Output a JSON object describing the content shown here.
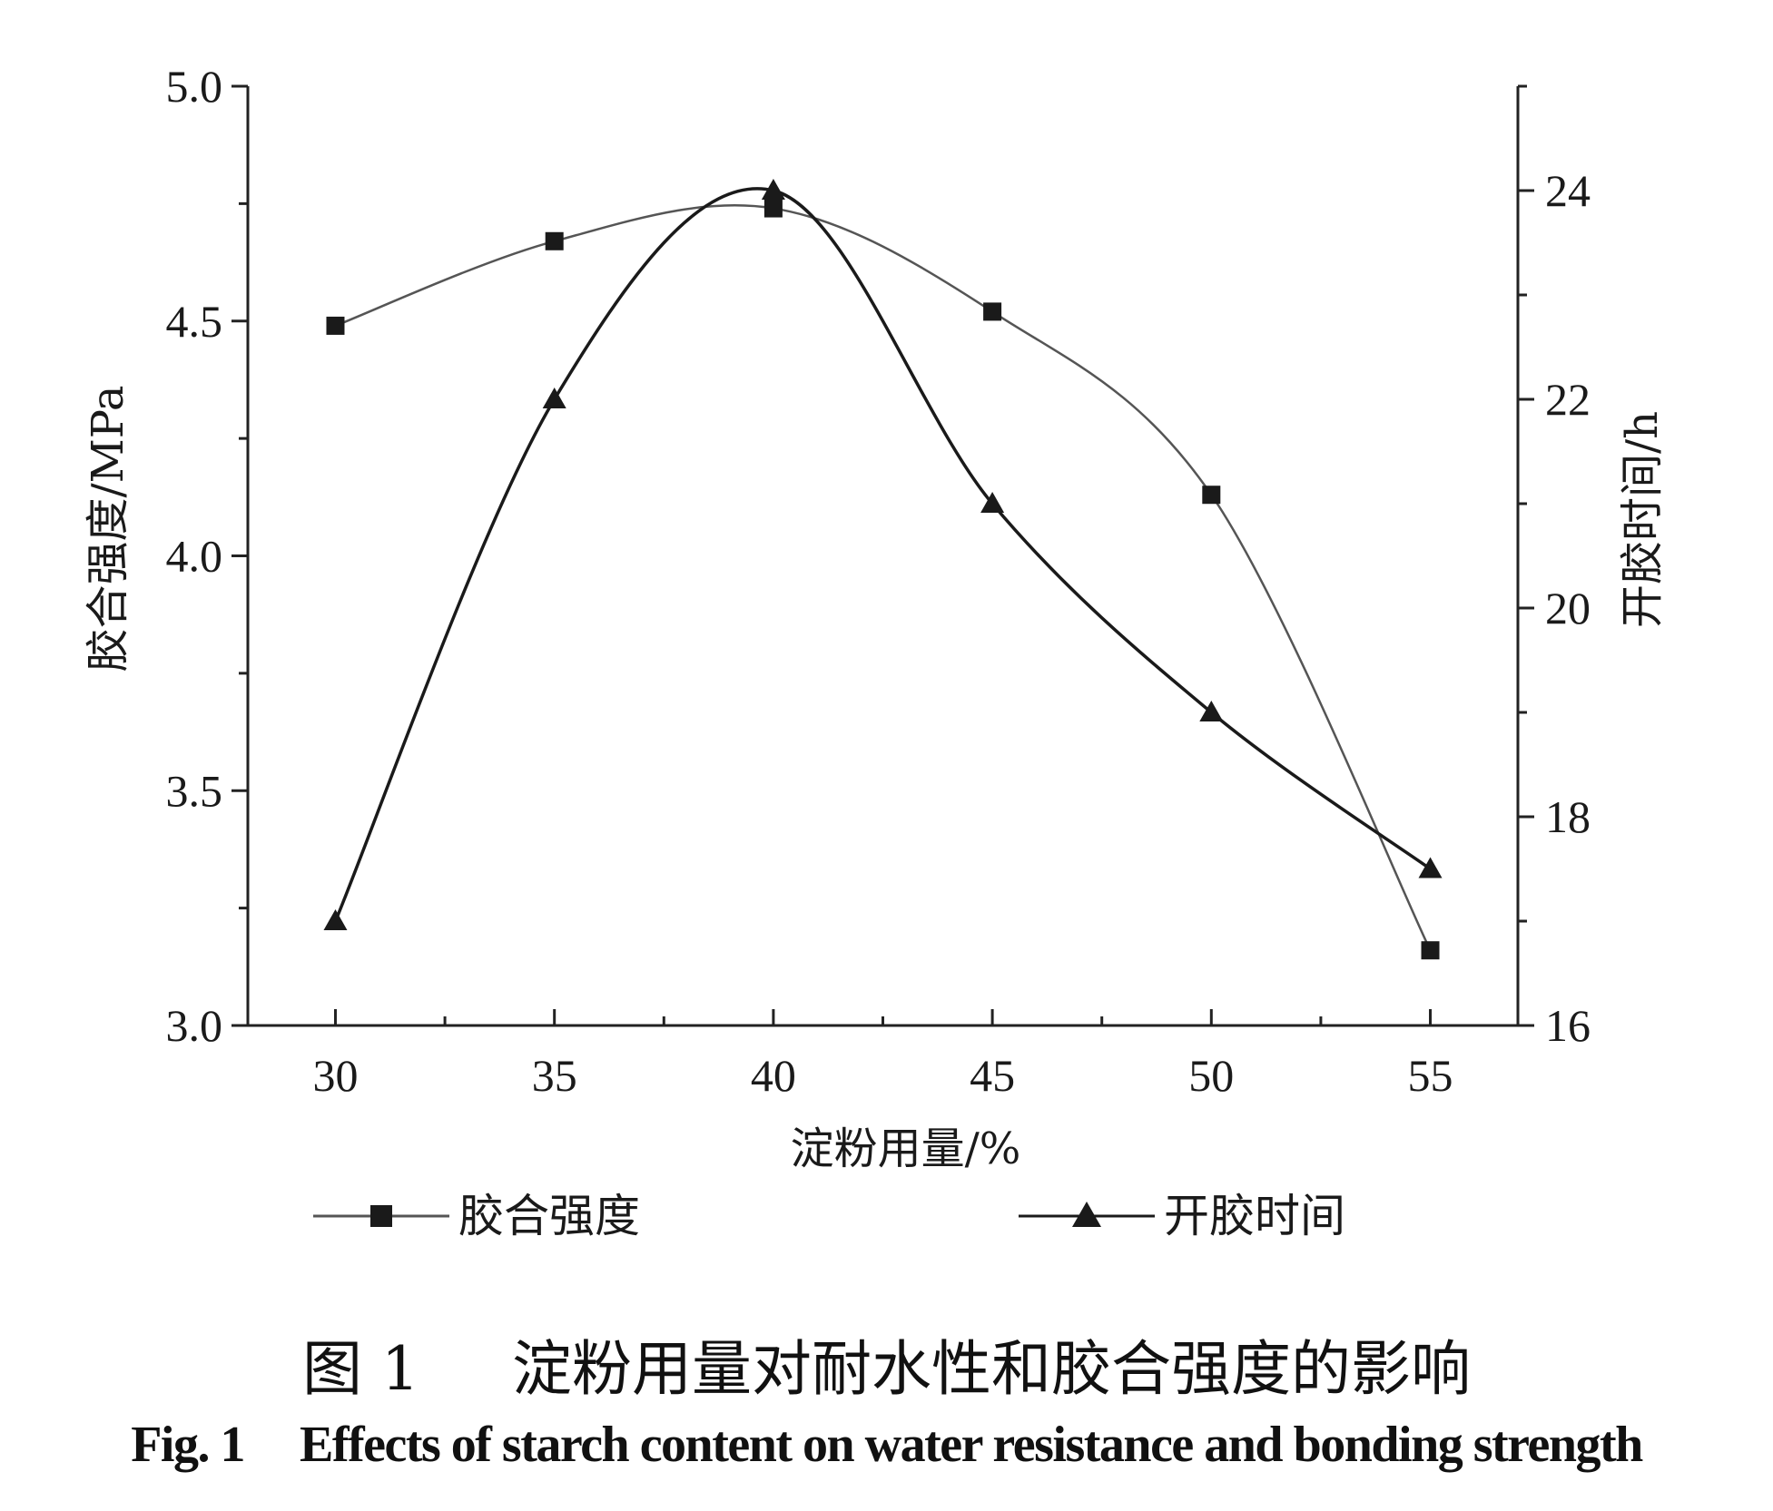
{
  "chart_data": {
    "type": "line",
    "x": [
      30,
      35,
      40,
      45,
      50,
      55
    ],
    "xlabel": "淀粉用量/%",
    "xlim": [
      28,
      57
    ],
    "xticks": [
      30,
      35,
      40,
      45,
      50,
      55
    ],
    "y_left": {
      "label": "胶合强度/MPa",
      "lim": [
        3.0,
        5.0
      ],
      "ticks": [
        "3.0",
        "3.5",
        "4.0",
        "4.5",
        "5.0"
      ]
    },
    "y_right": {
      "label": "开胶时间/h",
      "lim": [
        16,
        25
      ],
      "ticks": [
        "16",
        "18",
        "20",
        "22",
        "24"
      ]
    },
    "series": [
      {
        "name": "胶合强度",
        "axis": "left",
        "marker": "square",
        "values": [
          4.49,
          4.67,
          4.74,
          4.52,
          4.13,
          3.16
        ],
        "color": "#555555"
      },
      {
        "name": "开胶时间",
        "axis": "right",
        "marker": "triangle",
        "values": [
          17.0,
          22.0,
          24.0,
          21.0,
          19.0,
          17.5
        ],
        "color": "#1a1a1a"
      }
    ],
    "legend_position": "bottom",
    "grid": false
  },
  "caption": {
    "cn_label": "图 1",
    "cn_title": "淀粉用量对耐水性和胶合强度的影响",
    "en_label": "Fig. 1",
    "en_title": "Effects of starch content on water resistance and bonding strength"
  }
}
